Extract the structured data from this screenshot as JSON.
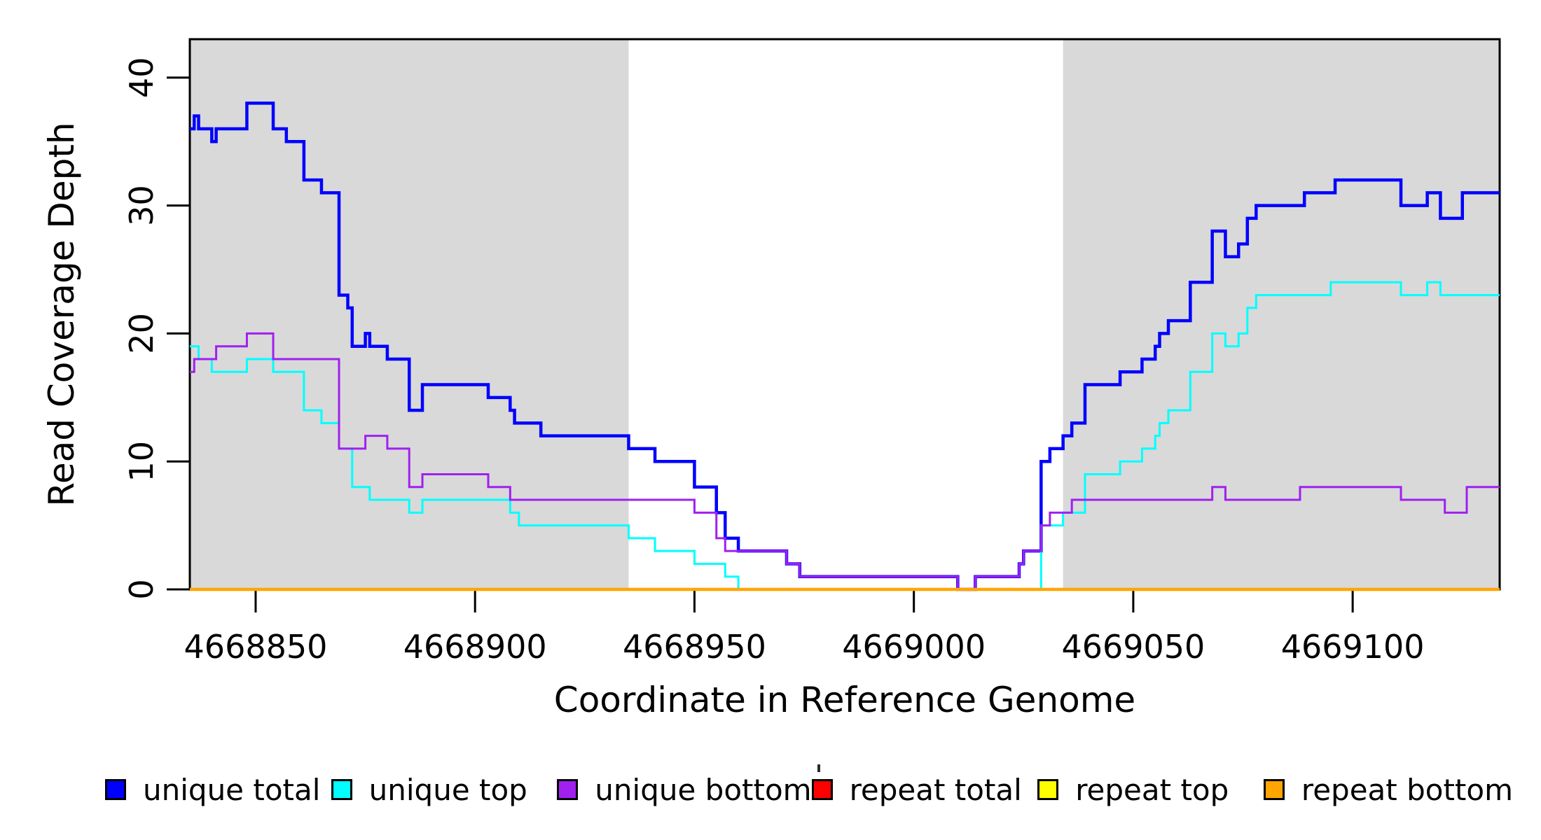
{
  "chart_data": {
    "type": "line",
    "subtype": "step-coverage-plot",
    "title": "",
    "xlabel": "Coordinate in Reference Genome",
    "ylabel": "Read Coverage Depth",
    "xlim": [
      4668835,
      4669133.5
    ],
    "ylim": [
      0,
      43
    ],
    "x_ticks": [
      4668850,
      4668900,
      4668950,
      4669000,
      4669050,
      4669100
    ],
    "y_ticks": [
      0,
      10,
      20,
      30,
      40
    ],
    "grid": false,
    "plot_background": "#ffffff",
    "shaded_regions": {
      "color": "#d9d9d9",
      "regions": [
        [
          4668835,
          4668935
        ],
        [
          4669034,
          4669133.5
        ]
      ]
    },
    "legend": {
      "position": "bottom",
      "entries": [
        {
          "label": "unique total",
          "color": "#0000FF"
        },
        {
          "label": "unique top",
          "color": "#00FFFF"
        },
        {
          "label": "unique bottom",
          "color": "#A020F0"
        },
        {
          "label": "repeat total",
          "color": "#FF0000"
        },
        {
          "label": "repeat top",
          "color": "#FFFF00"
        },
        {
          "label": "repeat bottom",
          "color": "#FFA500"
        }
      ]
    },
    "series": [
      {
        "name": "unique total",
        "color": "#0000FF",
        "line_width": 4.5,
        "steps": [
          [
            4668835,
            36
          ],
          [
            4668836,
            37
          ],
          [
            4668837,
            36
          ],
          [
            4668840,
            35
          ],
          [
            4668841,
            36
          ],
          [
            4668848,
            38
          ],
          [
            4668854,
            36
          ],
          [
            4668857,
            35
          ],
          [
            4668861,
            32
          ],
          [
            4668865,
            31
          ],
          [
            4668869,
            23
          ],
          [
            4668871,
            22
          ],
          [
            4668872,
            19
          ],
          [
            4668875,
            20
          ],
          [
            4668876,
            19
          ],
          [
            4668880,
            18
          ],
          [
            4668885,
            14
          ],
          [
            4668888,
            16
          ],
          [
            4668903,
            15
          ],
          [
            4668908,
            14
          ],
          [
            4668909,
            13
          ],
          [
            4668915,
            12
          ],
          [
            4668935,
            11
          ],
          [
            4668941,
            10
          ],
          [
            4668950,
            8
          ],
          [
            4668955,
            6
          ],
          [
            4668957,
            4
          ],
          [
            4668960,
            3
          ],
          [
            4668971,
            2
          ],
          [
            4668974,
            1
          ],
          [
            4669010,
            0
          ],
          [
            4669014,
            1
          ],
          [
            4669024,
            2
          ],
          [
            4669025,
            3
          ],
          [
            4669029,
            10
          ],
          [
            4669031,
            11
          ],
          [
            4669034,
            12
          ],
          [
            4669036,
            13
          ],
          [
            4669039,
            16
          ],
          [
            4669047,
            17
          ],
          [
            4669052,
            18
          ],
          [
            4669055,
            19
          ],
          [
            4669056,
            20
          ],
          [
            4669058,
            21
          ],
          [
            4669063,
            24
          ],
          [
            4669068,
            28
          ],
          [
            4669071,
            26
          ],
          [
            4669074,
            27
          ],
          [
            4669076,
            29
          ],
          [
            4669078,
            30
          ],
          [
            4669089,
            31
          ],
          [
            4669096,
            32
          ],
          [
            4669111,
            30
          ],
          [
            4669117,
            31
          ],
          [
            4669120,
            29
          ],
          [
            4669125,
            31
          ]
        ]
      },
      {
        "name": "unique top",
        "color": "#00FFFF",
        "line_width": 3,
        "steps": [
          [
            4668835,
            19
          ],
          [
            4668837,
            18
          ],
          [
            4668840,
            17
          ],
          [
            4668848,
            18
          ],
          [
            4668854,
            17
          ],
          [
            4668861,
            14
          ],
          [
            4668865,
            13
          ],
          [
            4668869,
            11
          ],
          [
            4668872,
            8
          ],
          [
            4668876,
            7
          ],
          [
            4668885,
            6
          ],
          [
            4668888,
            7
          ],
          [
            4668908,
            6
          ],
          [
            4668910,
            5
          ],
          [
            4668935,
            4
          ],
          [
            4668941,
            3
          ],
          [
            4668950,
            2
          ],
          [
            4668957,
            1
          ],
          [
            4668960,
            0
          ],
          [
            4669029,
            5
          ],
          [
            4669034,
            6
          ],
          [
            4669039,
            9
          ],
          [
            4669047,
            10
          ],
          [
            4669052,
            11
          ],
          [
            4669055,
            12
          ],
          [
            4669056,
            13
          ],
          [
            4669058,
            14
          ],
          [
            4669063,
            17
          ],
          [
            4669068,
            20
          ],
          [
            4669071,
            19
          ],
          [
            4669074,
            20
          ],
          [
            4669076,
            22
          ],
          [
            4669078,
            23
          ],
          [
            4669095,
            24
          ],
          [
            4669111,
            23
          ],
          [
            4669117,
            24
          ],
          [
            4669120,
            23
          ]
        ]
      },
      {
        "name": "unique bottom",
        "color": "#A020F0",
        "line_width": 3,
        "steps": [
          [
            4668835,
            17
          ],
          [
            4668836,
            18
          ],
          [
            4668841,
            19
          ],
          [
            4668848,
            20
          ],
          [
            4668854,
            18
          ],
          [
            4668869,
            11
          ],
          [
            4668875,
            12
          ],
          [
            4668880,
            11
          ],
          [
            4668885,
            8
          ],
          [
            4668888,
            9
          ],
          [
            4668903,
            8
          ],
          [
            4668908,
            7
          ],
          [
            4668950,
            6
          ],
          [
            4668955,
            4
          ],
          [
            4668957,
            3
          ],
          [
            4668971,
            2
          ],
          [
            4668974,
            1
          ],
          [
            4669010,
            0
          ],
          [
            4669014,
            1
          ],
          [
            4669024,
            2
          ],
          [
            4669025,
            3
          ],
          [
            4669029,
            5
          ],
          [
            4669031,
            6
          ],
          [
            4669036,
            7
          ],
          [
            4669068,
            8
          ],
          [
            4669071,
            7
          ],
          [
            4669088,
            8
          ],
          [
            4669111,
            7
          ],
          [
            4669121,
            6
          ],
          [
            4669126,
            8
          ]
        ]
      },
      {
        "name": "repeat total",
        "color": "#FF0000",
        "line_width": 3,
        "steps": [
          [
            4668835,
            0
          ]
        ]
      },
      {
        "name": "repeat top",
        "color": "#FFFF00",
        "line_width": 3,
        "steps": [
          [
            4668835,
            0
          ]
        ]
      },
      {
        "name": "repeat bottom",
        "color": "#FFA500",
        "line_width": 4.5,
        "steps": [
          [
            4668835,
            0
          ]
        ]
      }
    ]
  }
}
